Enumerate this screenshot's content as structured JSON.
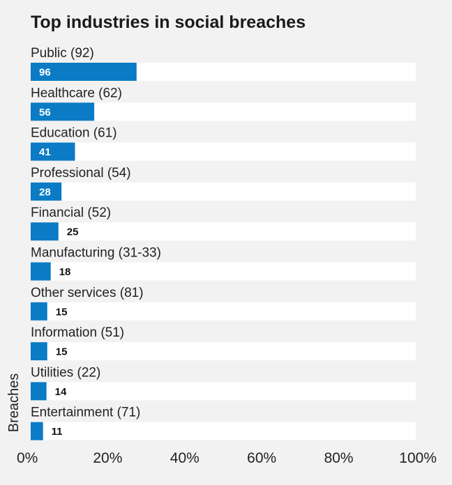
{
  "chart_data": {
    "type": "bar",
    "orientation": "horizontal",
    "title": "Top industries in social breaches",
    "ylabel": "Breaches",
    "xlabel": "",
    "xlim": [
      0,
      100
    ],
    "x_tick_labels": [
      "0%",
      "20%",
      "40%",
      "60%",
      "80%",
      "100%"
    ],
    "x_ticks": [
      0,
      20,
      40,
      60,
      80,
      100
    ],
    "grid": false,
    "categories": [
      "Public (92)",
      "Healthcare (62)",
      "Education (61)",
      "Professional (54)",
      "Financial (52)",
      "Manufacturing (31-33)",
      "Other services (81)",
      "Information (51)",
      "Utilities (22)",
      "Entertainment (71)"
    ],
    "values": [
      96,
      56,
      41,
      28,
      25,
      18,
      15,
      15,
      14,
      11
    ],
    "percent_values": [
      27.5,
      16.5,
      11.5,
      8,
      7.2,
      5.2,
      4.3,
      4.3,
      4.1,
      3.2
    ],
    "colors": {
      "bar": "#0a7bc4",
      "track": "#ffffff",
      "background": "#f2f2f2",
      "label_inside": "#ffffff",
      "label_outside": "#111111"
    }
  }
}
